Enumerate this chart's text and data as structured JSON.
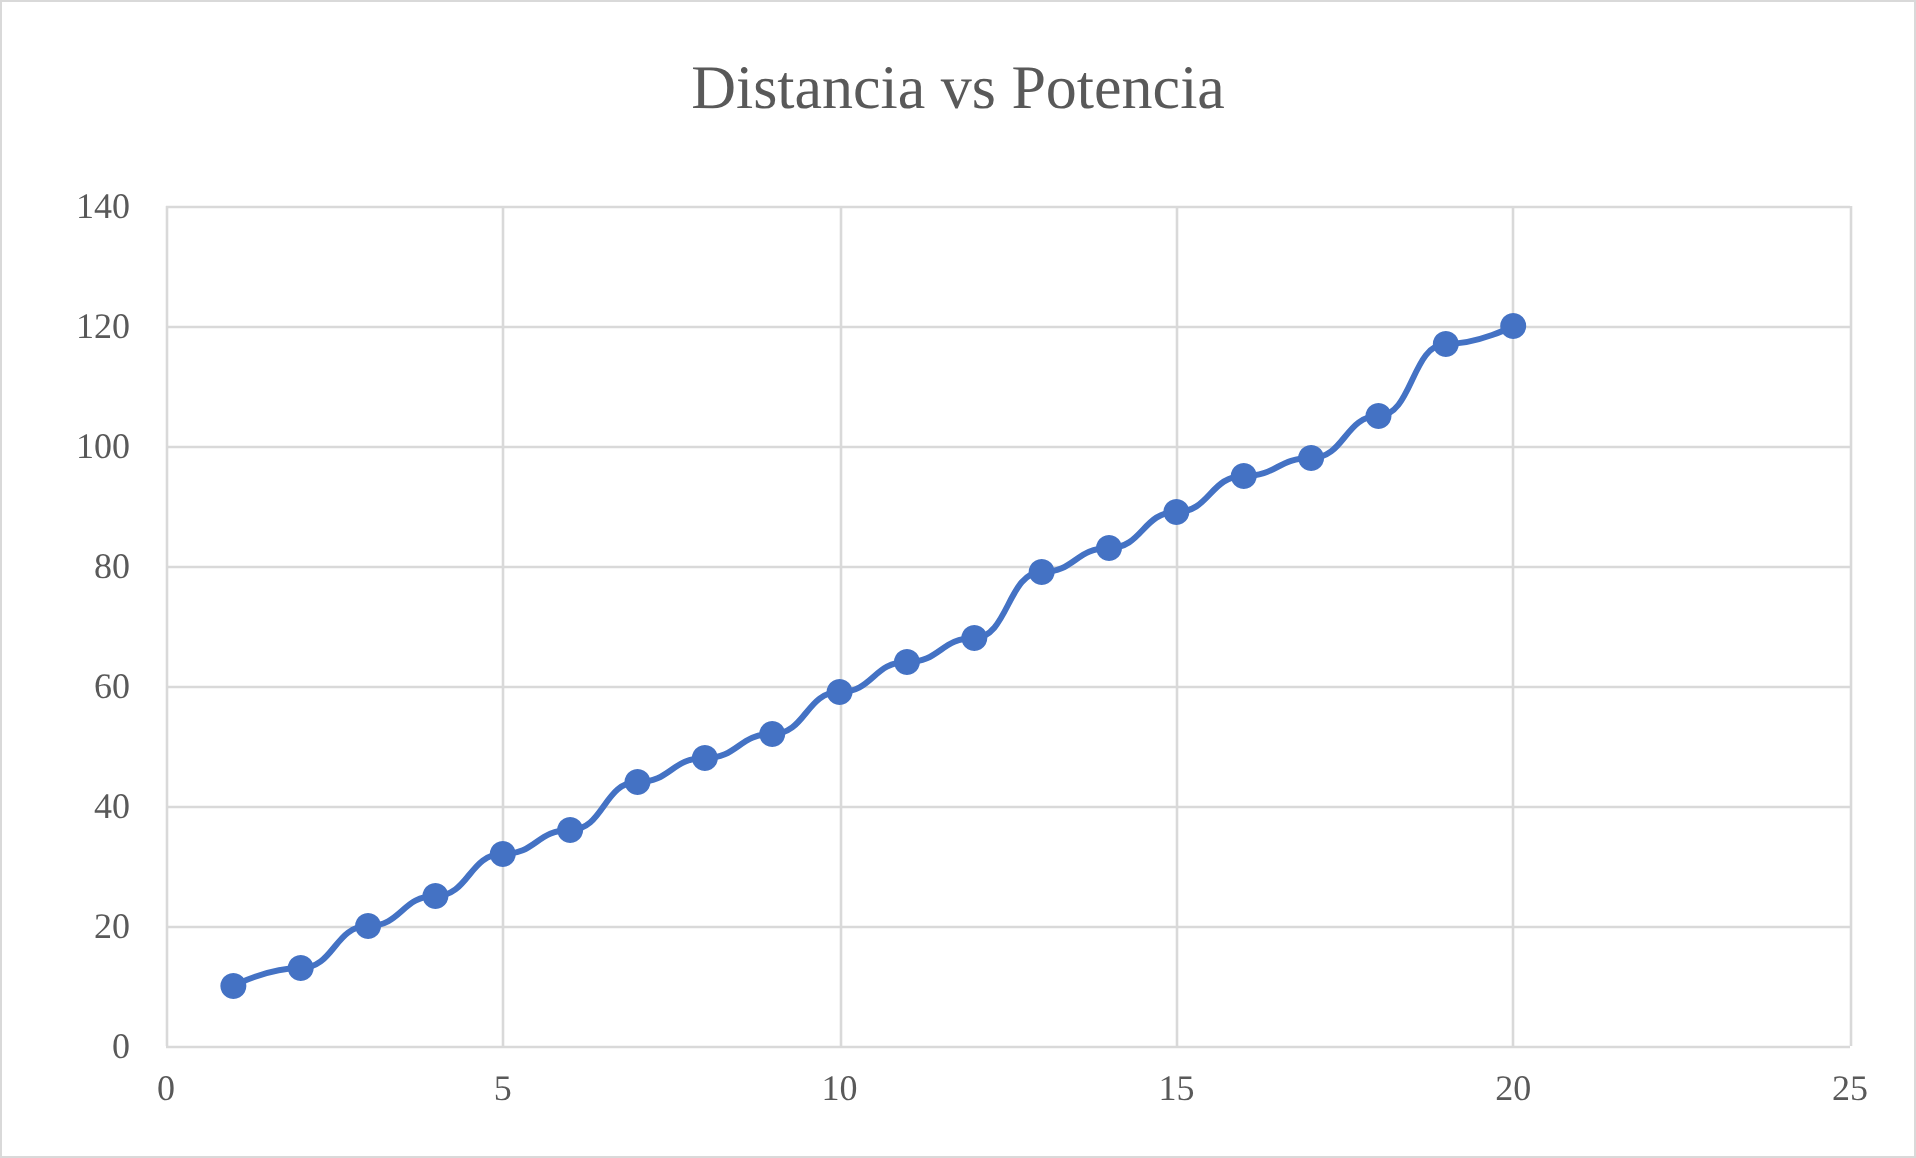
{
  "chart_data": {
    "type": "line",
    "title": "Distancia vs Potencia",
    "x": [
      1,
      2,
      3,
      4,
      5,
      6,
      7,
      8,
      9,
      10,
      11,
      12,
      13,
      14,
      15,
      16,
      17,
      18,
      19,
      20
    ],
    "series": [
      {
        "color": "#4472c4",
        "values": [
          10,
          13,
          20,
          25,
          32,
          36,
          44,
          48,
          52,
          59,
          64,
          68,
          79,
          83,
          89,
          95,
          98,
          105,
          117,
          120
        ]
      }
    ],
    "xlim": [
      0,
      25
    ],
    "xticks": [
      0,
      5,
      10,
      15,
      20,
      25
    ],
    "ylim": [
      0,
      140
    ],
    "yticks": [
      0,
      20,
      40,
      60,
      80,
      100,
      120,
      140
    ],
    "grid": true,
    "marker": "circle",
    "line_style": "solid"
  }
}
